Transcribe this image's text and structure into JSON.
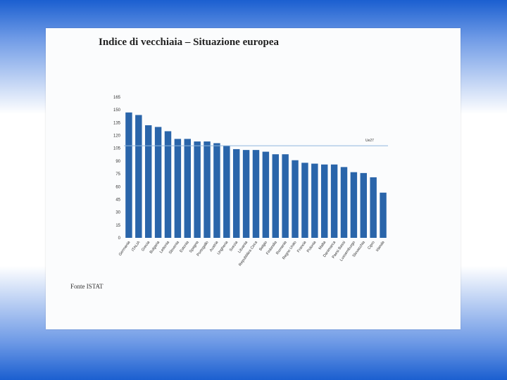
{
  "chart_data": {
    "type": "bar",
    "title": "Indice di vecchiaia – Situazione europea",
    "ylim": [
      0,
      165
    ],
    "yticks": [
      0,
      15,
      30,
      45,
      60,
      75,
      90,
      105,
      120,
      135,
      150,
      165
    ],
    "categories": [
      "Germania",
      "ITALIA",
      "Grecia",
      "Bulgaria",
      "Lettonia",
      "Slovenia",
      "Estonia",
      "Spagna",
      "Portogallo",
      "Austria",
      "Ungheria",
      "Svezia",
      "Lituania",
      "Repubblica Ceca",
      "Belgio",
      "Finlandia",
      "Romania",
      "Regno Unito",
      "Francia",
      "Polonia",
      "Malta",
      "Danimarca",
      "Paesi Bassi",
      "Lussemburgo",
      "Slovacchia",
      "Cipro",
      "Irlanda"
    ],
    "values": [
      147,
      144,
      132,
      130,
      125,
      116,
      116,
      113,
      113,
      111,
      108,
      104,
      103,
      103,
      101,
      98,
      98,
      91,
      88,
      87,
      86,
      86,
      83,
      77,
      76,
      71,
      53
    ],
    "reference_line": {
      "label": "Ue27",
      "value": 108
    },
    "grid": false,
    "legend": "none"
  },
  "source": "Fonte ISTAT"
}
